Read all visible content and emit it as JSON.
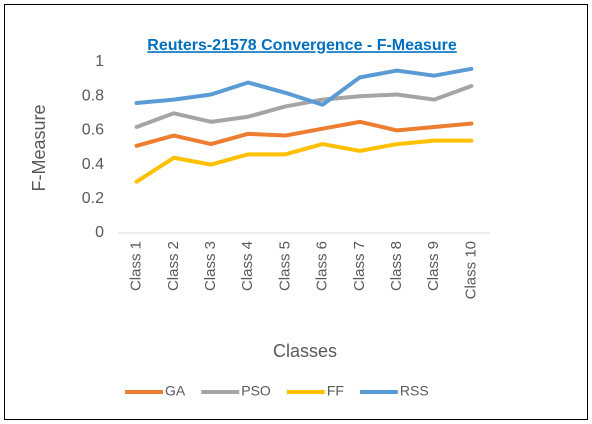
{
  "chart_data": {
    "type": "line",
    "title": "Reuters-21578 Convergence - F-Measure",
    "x_label": "Classes",
    "y_label": "F-Measure",
    "categories": [
      "Class 1",
      "Class 2",
      "Class 3",
      "Class 4",
      "Class 5",
      "Class 6",
      "Class 7",
      "Class 8",
      "Class 9",
      "Class 10"
    ],
    "series": [
      {
        "name": "GA",
        "color": "#ed7d31",
        "values": [
          0.51,
          0.57,
          0.52,
          0.58,
          0.57,
          0.61,
          0.65,
          0.6,
          0.62,
          0.64
        ]
      },
      {
        "name": "PSO",
        "color": "#a5a5a5",
        "values": [
          0.62,
          0.7,
          0.65,
          0.68,
          0.74,
          0.78,
          0.8,
          0.81,
          0.78,
          0.86
        ]
      },
      {
        "name": "FF",
        "color": "#ffc000",
        "values": [
          0.3,
          0.44,
          0.4,
          0.46,
          0.46,
          0.52,
          0.48,
          0.52,
          0.54,
          0.54
        ]
      },
      {
        "name": "RSS",
        "color": "#5b9bd5",
        "values": [
          0.76,
          0.78,
          0.81,
          0.88,
          0.82,
          0.75,
          0.91,
          0.95,
          0.92,
          0.96
        ]
      }
    ],
    "ylim": [
      0,
      1
    ],
    "yticks": [
      0,
      0.2,
      0.4,
      0.6,
      0.8,
      1
    ],
    "grid": false,
    "legend": "bottom"
  }
}
